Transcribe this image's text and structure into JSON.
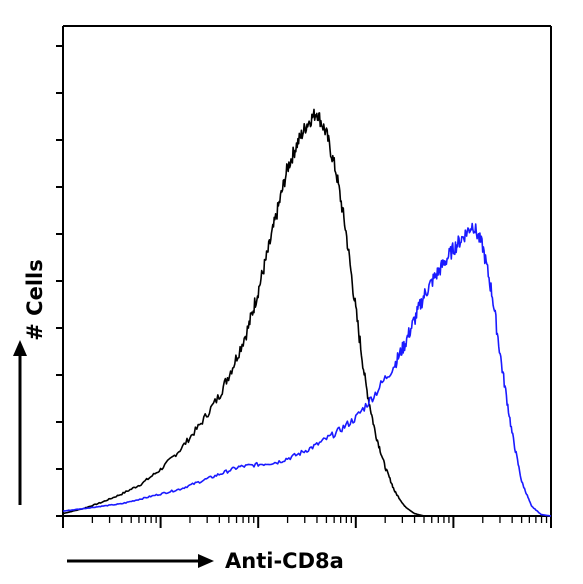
{
  "chart_data": {
    "type": "line",
    "title": "",
    "xlabel": "Anti-CD8a",
    "ylabel": "# Cells",
    "x_scale": "log",
    "xlim": [
      1,
      100000
    ],
    "ylim": [
      0,
      100
    ],
    "grid": false,
    "legend": "none",
    "series": [
      {
        "color": "#000000",
        "x": [
          1.0,
          1.6,
          2.5,
          4.0,
          6.3,
          10,
          15.8,
          25.1,
          39.8,
          56.2,
          79.4,
          100,
          125.9,
          158.5,
          199.5,
          251.2,
          316.2,
          398.1,
          501.2,
          631.0,
          794.3,
          1000,
          1259,
          1585,
          1995,
          2512,
          3162,
          3981,
          5012,
          6310,
          7943,
          10000,
          31623,
          100000
        ],
        "values": [
          0.5,
          1.5,
          2.8,
          4.5,
          6.5,
          9.5,
          13.5,
          18.5,
          24.5,
          31.0,
          38.5,
          46.0,
          54.0,
          62.5,
          71.0,
          76.0,
          80.0,
          82.5,
          78.0,
          70.0,
          58.0,
          42.0,
          27.0,
          17.0,
          10.0,
          5.0,
          2.0,
          0.5,
          0.0,
          0.0,
          0.0,
          0.0,
          0.0,
          0.0
        ]
      },
      {
        "color": "#1a1aff",
        "x": [
          1.0,
          1.6,
          2.5,
          4.0,
          6.3,
          10,
          15.8,
          25.1,
          39.8,
          63.1,
          100,
          158.5,
          251.2,
          398.1,
          631.0,
          1000,
          1585,
          2512,
          3162,
          3981,
          5012,
          6310,
          7943,
          10000,
          12589,
          15849,
          19953,
          25119,
          31623,
          39811,
          50119,
          63096,
          79433,
          100000
        ],
        "values": [
          1.0,
          1.5,
          2.0,
          2.5,
          3.5,
          4.5,
          5.5,
          7.0,
          8.5,
          10.0,
          10.5,
          11.0,
          12.5,
          14.5,
          17.0,
          20.0,
          25.0,
          31.0,
          35.0,
          40.0,
          45.0,
          48.5,
          51.5,
          54.5,
          57.0,
          59.5,
          55.0,
          45.0,
          30.0,
          17.0,
          7.0,
          2.0,
          0.3,
          0.0
        ]
      }
    ]
  }
}
